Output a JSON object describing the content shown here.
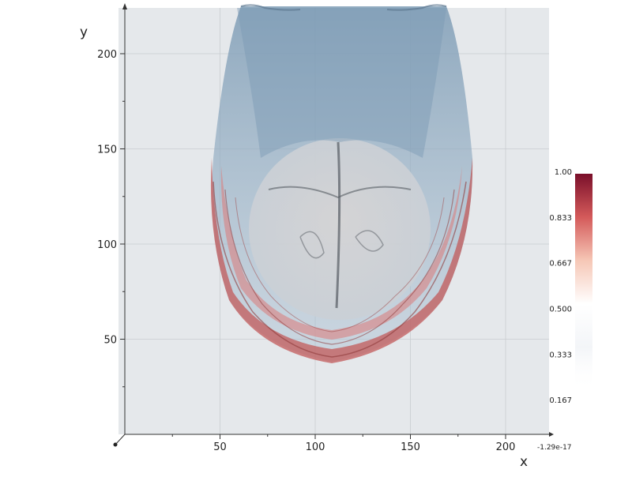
{
  "chart_data": {
    "type": "heatmap",
    "title": "",
    "xlabel": "x",
    "ylabel": "y",
    "xlim": [
      0,
      225
    ],
    "ylim": [
      0,
      225
    ],
    "x_ticks": [
      50,
      100,
      150,
      200
    ],
    "y_ticks": [
      50,
      100,
      150,
      200
    ],
    "x_tick_labels": [
      "50",
      "100",
      "150",
      "200"
    ],
    "y_tick_labels": [
      "50",
      "100",
      "150",
      "200"
    ],
    "axis_corner_label": "-1.29e-17",
    "grid": true,
    "colorscale": {
      "name": "RdBu (reversed)",
      "range": [
        0,
        1
      ],
      "ticks": [
        0.167,
        0.333,
        0.5,
        0.667,
        0.833,
        1.0
      ],
      "tick_labels": [
        "0.167",
        "0.333",
        "0.500",
        "0.667",
        "0.833",
        "1.00"
      ],
      "low_color": "#5a8fb5",
      "mid_color": "#f7f7f7",
      "high_color": "#7a0f2a"
    },
    "description": "Volume rendering of a brain scan; cortex outer rings shown in red, interior in grey/blue"
  }
}
